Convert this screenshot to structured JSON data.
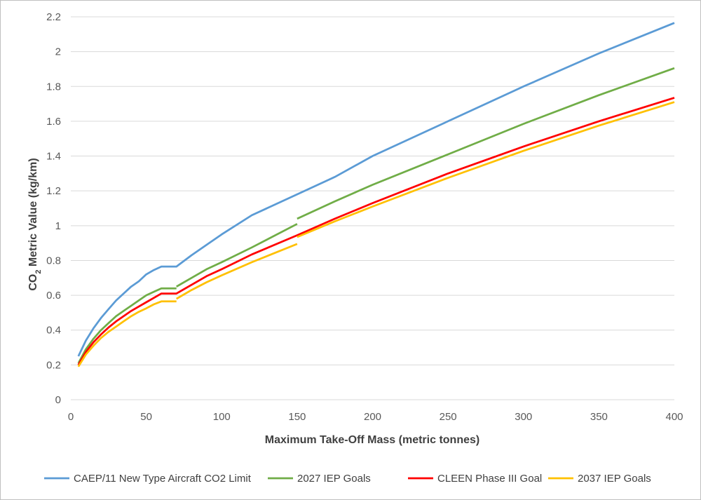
{
  "chart_data": {
    "type": "line",
    "title": "",
    "xlabel": "Maximum Take-Off Mass (metric tonnes)",
    "ylabel": {
      "prefix": "CO",
      "subscript": "2",
      "suffix": " Metric Value (kg/km)"
    },
    "xlim": [
      0,
      400
    ],
    "ylim": [
      0,
      2.2
    ],
    "x_ticks": [
      0,
      50,
      100,
      150,
      200,
      250,
      300,
      350,
      400
    ],
    "y_ticks": [
      0,
      0.2,
      0.4,
      0.6,
      0.8,
      1,
      1.2,
      1.4,
      1.6,
      1.8,
      2,
      2.2
    ],
    "x_tick_labels": [
      "0",
      "50",
      "100",
      "150",
      "200",
      "250",
      "300",
      "350",
      "400"
    ],
    "y_tick_labels": [
      "0",
      "0.2",
      "0.4",
      "0.6",
      "0.8",
      "1",
      "1.2",
      "1.4",
      "1.6",
      "1.8",
      "2",
      "2.2"
    ],
    "grid": "horizontal",
    "legend_position": "bottom",
    "series": [
      {
        "name": "CAEP/11 New Type Aircraft CO2 Limit",
        "color": "#5b9bd5",
        "segments": [
          [
            [
              5,
              0.25
            ],
            [
              10,
              0.34
            ],
            [
              15,
              0.41
            ],
            [
              20,
              0.47
            ],
            [
              25,
              0.52
            ],
            [
              30,
              0.57
            ],
            [
              35,
              0.61
            ],
            [
              40,
              0.65
            ],
            [
              45,
              0.68
            ],
            [
              50,
              0.72
            ],
            [
              55,
              0.745
            ],
            [
              60,
              0.765
            ],
            [
              65,
              0.765
            ],
            [
              70,
              0.765
            ],
            [
              80,
              0.83
            ],
            [
              90,
              0.89
            ],
            [
              100,
              0.95
            ],
            [
              120,
              1.06
            ],
            [
              150,
              1.18
            ],
            [
              175,
              1.28
            ],
            [
              200,
              1.4
            ],
            [
              250,
              1.6
            ],
            [
              300,
              1.8
            ],
            [
              350,
              1.99
            ],
            [
              400,
              2.165
            ]
          ]
        ]
      },
      {
        "name": "2027 IEP Goals",
        "color": "#70ad47",
        "segments": [
          [
            [
              5,
              0.21
            ],
            [
              10,
              0.29
            ],
            [
              15,
              0.35
            ],
            [
              20,
              0.4
            ],
            [
              25,
              0.44
            ],
            [
              30,
              0.48
            ],
            [
              35,
              0.51
            ],
            [
              40,
              0.54
            ],
            [
              45,
              0.57
            ],
            [
              50,
              0.6
            ],
            [
              55,
              0.62
            ],
            [
              60,
              0.64
            ],
            [
              65,
              0.64
            ],
            [
              70,
              0.64
            ]
          ],
          [
            [
              70,
              0.65
            ],
            [
              80,
              0.7
            ],
            [
              90,
              0.75
            ],
            [
              100,
              0.79
            ],
            [
              120,
              0.875
            ],
            [
              150,
              1.01
            ]
          ],
          [
            [
              150,
              1.04
            ],
            [
              175,
              1.14
            ],
            [
              200,
              1.235
            ],
            [
              250,
              1.41
            ],
            [
              300,
              1.585
            ],
            [
              350,
              1.75
            ],
            [
              400,
              1.905
            ]
          ]
        ]
      },
      {
        "name": "CLEEN Phase III Goal",
        "color": "#ff0000",
        "segments": [
          [
            [
              5,
              0.2
            ],
            [
              10,
              0.275
            ],
            [
              15,
              0.33
            ],
            [
              20,
              0.375
            ],
            [
              25,
              0.415
            ],
            [
              30,
              0.45
            ],
            [
              35,
              0.48
            ],
            [
              40,
              0.51
            ],
            [
              45,
              0.535
            ],
            [
              50,
              0.56
            ],
            [
              55,
              0.585
            ],
            [
              60,
              0.61
            ],
            [
              65,
              0.61
            ],
            [
              70,
              0.61
            ],
            [
              80,
              0.66
            ],
            [
              90,
              0.71
            ],
            [
              100,
              0.75
            ],
            [
              120,
              0.835
            ],
            [
              150,
              0.945
            ],
            [
              175,
              1.04
            ],
            [
              200,
              1.13
            ],
            [
              250,
              1.3
            ],
            [
              300,
              1.455
            ],
            [
              350,
              1.6
            ],
            [
              400,
              1.735
            ]
          ]
        ]
      },
      {
        "name": "2037 IEP Goals",
        "color": "#ffc000",
        "segments": [
          [
            [
              5,
              0.19
            ],
            [
              10,
              0.26
            ],
            [
              15,
              0.31
            ],
            [
              20,
              0.355
            ],
            [
              25,
              0.39
            ],
            [
              30,
              0.42
            ],
            [
              35,
              0.45
            ],
            [
              40,
              0.48
            ],
            [
              45,
              0.505
            ],
            [
              50,
              0.525
            ],
            [
              55,
              0.548
            ],
            [
              60,
              0.565
            ],
            [
              65,
              0.565
            ],
            [
              70,
              0.565
            ]
          ],
          [
            [
              70,
              0.58
            ],
            [
              80,
              0.63
            ],
            [
              90,
              0.675
            ],
            [
              100,
              0.715
            ],
            [
              120,
              0.79
            ],
            [
              150,
              0.895
            ]
          ],
          [
            [
              150,
              0.935
            ],
            [
              175,
              1.025
            ],
            [
              200,
              1.11
            ],
            [
              250,
              1.275
            ],
            [
              300,
              1.43
            ],
            [
              350,
              1.575
            ],
            [
              400,
              1.71
            ]
          ]
        ]
      }
    ]
  }
}
